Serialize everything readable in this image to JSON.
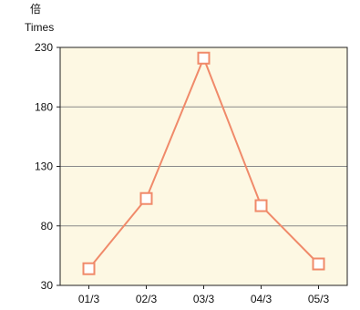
{
  "chart_data": {
    "type": "line",
    "ylabel_zh": "倍",
    "ylabel": "Times",
    "categories": [
      "01/3",
      "02/3",
      "03/3",
      "04/3",
      "05/3"
    ],
    "series": [
      {
        "values": [
          44,
          103,
          221,
          97,
          48
        ]
      }
    ],
    "ylim": [
      30,
      230
    ],
    "yticks": [
      30,
      80,
      130,
      180,
      230
    ],
    "grid": true,
    "colors": {
      "plot_background": "#fdf8e3",
      "line": "#f08a6a",
      "grid": "#8a8a8a",
      "axis": "#222222"
    }
  }
}
